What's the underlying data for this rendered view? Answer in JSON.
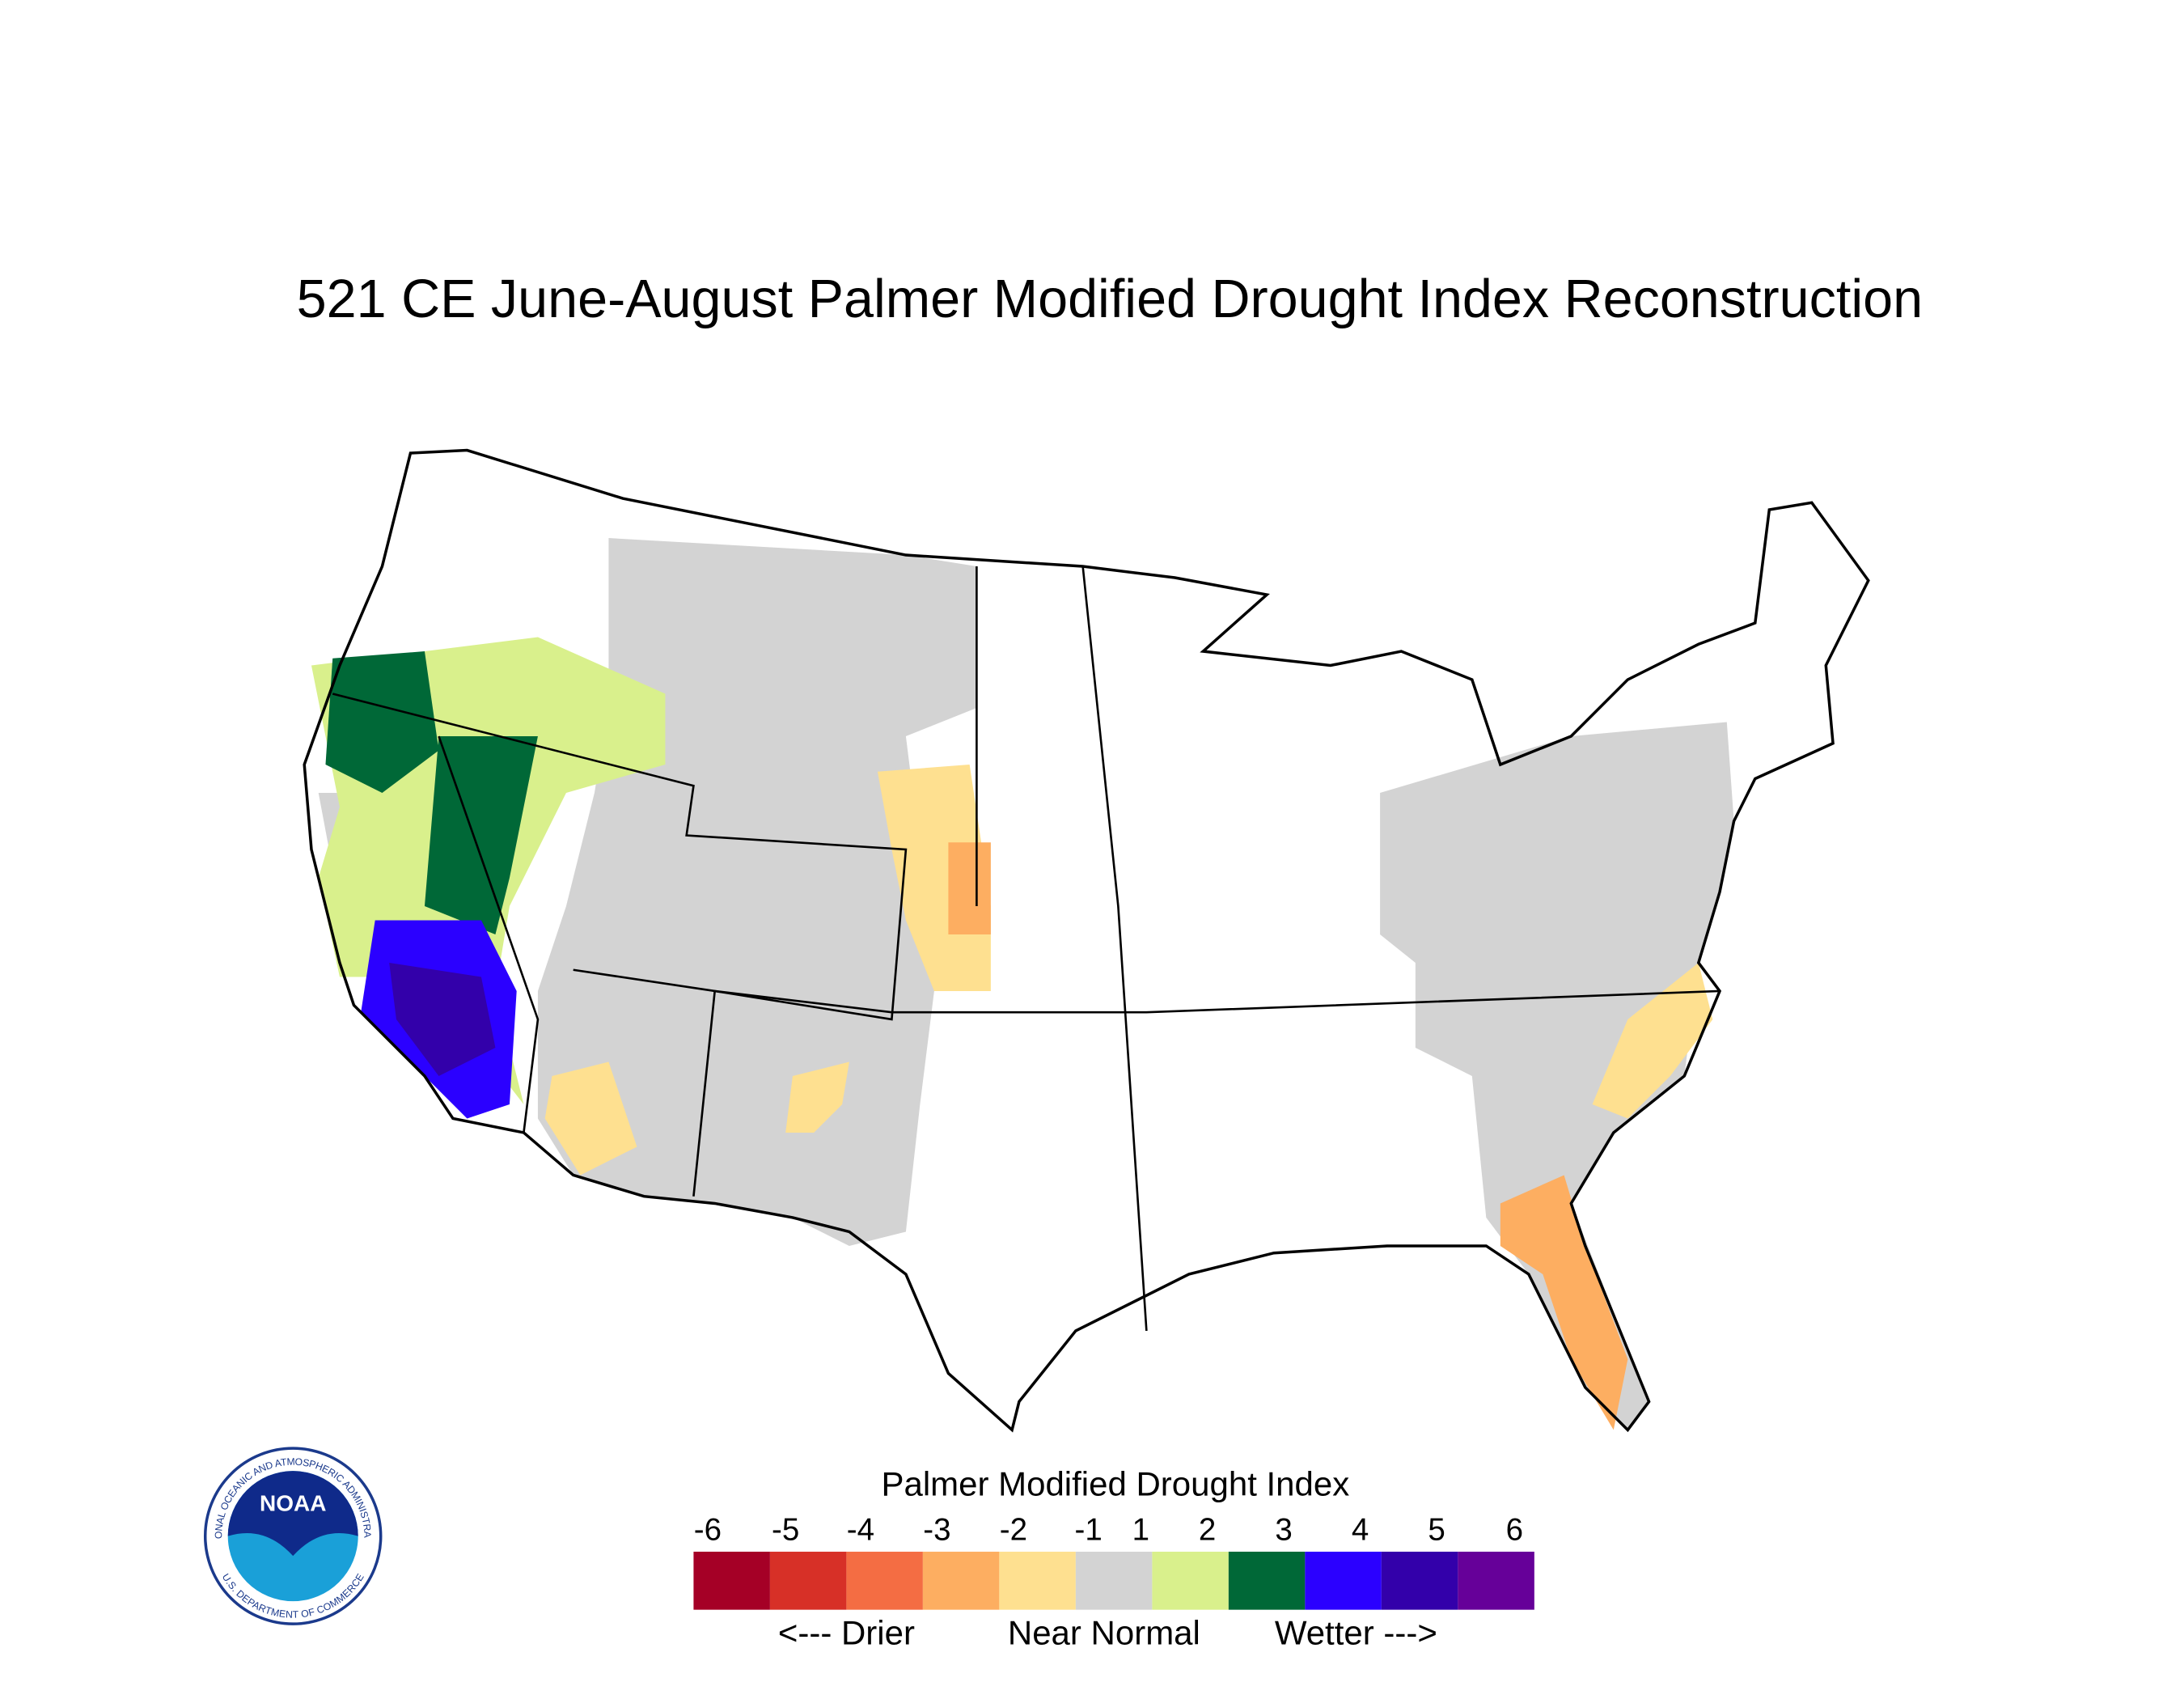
{
  "title": "521 CE  June-August  Palmer Modified Drought Index Reconstruction",
  "legend": {
    "title": "Palmer Modified Drought Index",
    "ticks": [
      -6,
      -5,
      -4,
      -3,
      -2,
      -1,
      1,
      2,
      3,
      4,
      5,
      6
    ],
    "colors": [
      "#a50026",
      "#d73027",
      "#f46d43",
      "#fdae61",
      "#fee090",
      "#d3d3d3",
      "#d9f08c",
      "#006837",
      "#2b00ff",
      "#3300aa",
      "#660099"
    ],
    "labels": [
      "<--- Drier",
      "Near Normal",
      "Wetter --->"
    ]
  },
  "logo": {
    "text": "NOAA",
    "ring_top": "NATIONAL OCEANIC AND ATMOSPHERIC ADMINISTRATION",
    "ring_bottom": "U.S. DEPARTMENT OF COMMERCE"
  }
}
